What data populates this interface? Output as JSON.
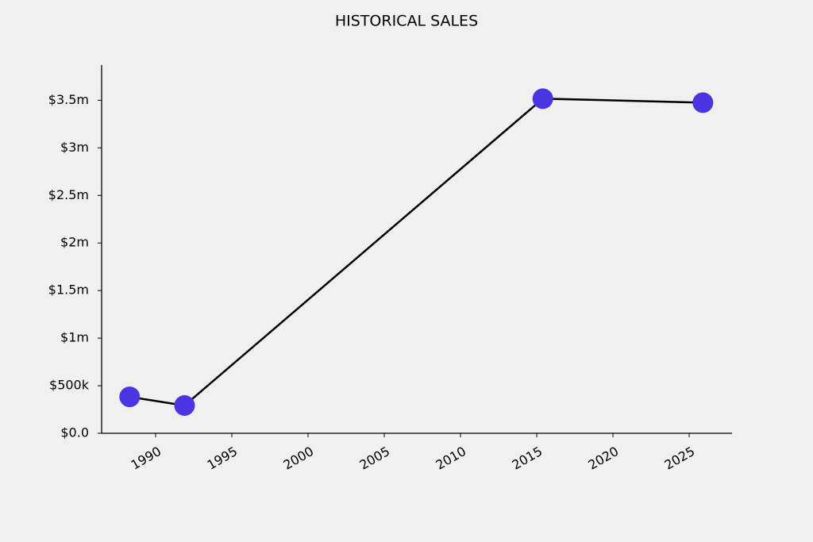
{
  "chart_data": {
    "type": "line",
    "title": "HISTORICAL SALES",
    "x": [
      1988.3,
      1991.9,
      2015.4,
      2025.9
    ],
    "y": [
      383000,
      292000,
      3517000,
      3475000
    ],
    "color": "#4b35e0",
    "line_color": "#000000",
    "xlim": [
      1986.46,
      2027.81
    ],
    "xticks": [
      1990,
      1995,
      2000,
      2005,
      2010,
      2015,
      2020,
      2025
    ],
    "ylim": [
      0,
      3870000
    ],
    "yticks": [
      {
        "value": 0,
        "label": "$0.0"
      },
      {
        "value": 500000,
        "label": "$500k"
      },
      {
        "value": 1000000,
        "label": "$1m"
      },
      {
        "value": 1500000,
        "label": "$1.5m"
      },
      {
        "value": 2000000,
        "label": "$2m"
      },
      {
        "value": 2500000,
        "label": "$2.5m"
      },
      {
        "value": 3000000,
        "label": "$3m"
      },
      {
        "value": 3500000,
        "label": "$3.5m"
      }
    ]
  }
}
